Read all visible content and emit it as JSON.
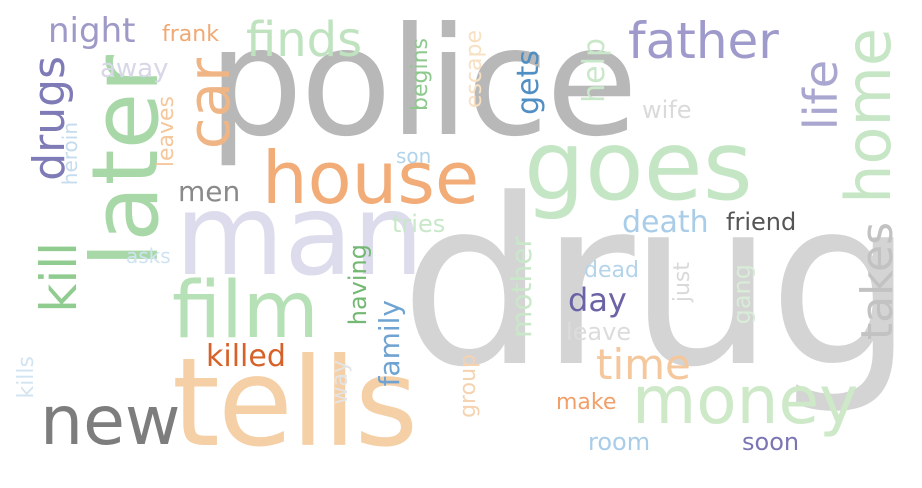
{
  "words": {
    "drug": {
      "text": "drug",
      "color": "#d4d4d4"
    },
    "police": {
      "text": "police",
      "color": "#b8b8b8"
    },
    "man": {
      "text": "man",
      "color": "#dcdcec"
    },
    "tells": {
      "text": "tells",
      "color": "#f5cfa6"
    },
    "later": {
      "text": "later",
      "color": "#a8d8a8"
    },
    "goes": {
      "text": "goes",
      "color": "#c4e6c4"
    },
    "house": {
      "text": "house",
      "color": "#f2ac78"
    },
    "film": {
      "text": "film",
      "color": "#b6e0b6"
    },
    "money": {
      "text": "money",
      "color": "#cde9c8"
    },
    "new": {
      "text": "new",
      "color": "#7d7d7d"
    },
    "home": {
      "text": "home",
      "color": "#c6e6c6"
    },
    "car": {
      "text": "car",
      "color": "#f0b584"
    },
    "father": {
      "text": "father",
      "color": "#9e9acb"
    },
    "finds": {
      "text": "finds",
      "color": "#bfe3bf"
    },
    "life": {
      "text": "life",
      "color": "#a9a6cf"
    },
    "takes": {
      "text": "takes",
      "color": "#c2c2c2"
    },
    "kill": {
      "text": "kill",
      "color": "#90cc8f"
    },
    "drugs": {
      "text": "drugs",
      "color": "#7f7bb6"
    },
    "night": {
      "text": "night",
      "color": "#9e9ac8"
    },
    "frank": {
      "text": "frank",
      "color": "#f1a974"
    },
    "away": {
      "text": "away",
      "color": "#d7d7e8"
    },
    "gets": {
      "text": "gets",
      "color": "#4f8fc4"
    },
    "help": {
      "text": "help",
      "color": "#c9e7c9"
    },
    "wife": {
      "text": "wife",
      "color": "#dadada"
    },
    "time": {
      "text": "time",
      "color": "#f5c79c"
    },
    "killed": {
      "text": "killed",
      "color": "#d6622a"
    },
    "death": {
      "text": "death",
      "color": "#a9cde8"
    },
    "friend": {
      "text": "friend",
      "color": "#555555"
    },
    "day": {
      "text": "day",
      "color": "#6a63a6"
    },
    "men": {
      "text": "men",
      "color": "#8a8a8a"
    },
    "family": {
      "text": "family",
      "color": "#6fa3d2"
    },
    "mother": {
      "text": "mother",
      "color": "#c9e7c9"
    },
    "having": {
      "text": "having",
      "color": "#73b873"
    },
    "tries": {
      "text": "tries",
      "color": "#c9e7c9"
    },
    "son": {
      "text": "son",
      "color": "#b2d3ea"
    },
    "begins": {
      "text": "begins",
      "color": "#8dc98d"
    },
    "escape": {
      "text": "escape",
      "color": "#f8e0c2"
    },
    "leaves": {
      "text": "leaves",
      "color": "#f5c79c"
    },
    "heroin": {
      "text": "heroin",
      "color": "#c4dcee"
    },
    "asks": {
      "text": "asks",
      "color": "#cfe3f1"
    },
    "dead": {
      "text": "dead",
      "color": "#b4d4ea"
    },
    "just": {
      "text": "just",
      "color": "#d9d9d9"
    },
    "gang": {
      "text": "gang",
      "color": "#d8ecd8"
    },
    "leave": {
      "text": "leave",
      "color": "#dcdcdc"
    },
    "group": {
      "text": "group",
      "color": "#f5d3b0"
    },
    "make": {
      "text": "make",
      "color": "#f1a06a"
    },
    "room": {
      "text": "room",
      "color": "#a9cde8"
    },
    "soon": {
      "text": "soon",
      "color": "#7b76b3"
    },
    "way": {
      "text": "way",
      "color": "#e4e4e4"
    },
    "kills": {
      "text": "kills",
      "color": "#d2e4f1"
    }
  }
}
